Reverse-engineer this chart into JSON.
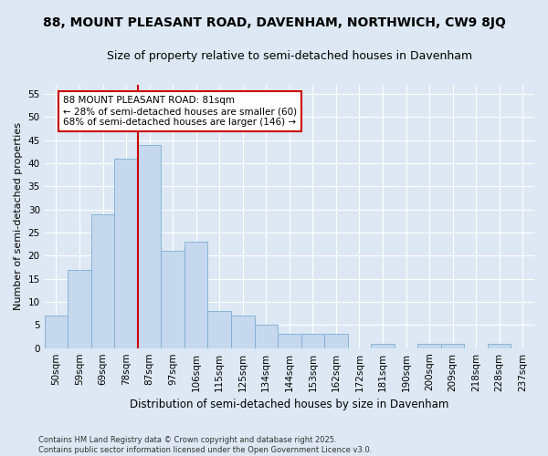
{
  "title": "88, MOUNT PLEASANT ROAD, DAVENHAM, NORTHWICH, CW9 8JQ",
  "subtitle": "Size of property relative to semi-detached houses in Davenham",
  "xlabel": "Distribution of semi-detached houses by size in Davenham",
  "ylabel": "Number of semi-detached properties",
  "categories": [
    "50sqm",
    "59sqm",
    "69sqm",
    "78sqm",
    "87sqm",
    "97sqm",
    "106sqm",
    "115sqm",
    "125sqm",
    "134sqm",
    "144sqm",
    "153sqm",
    "162sqm",
    "172sqm",
    "181sqm",
    "190sqm",
    "200sqm",
    "209sqm",
    "218sqm",
    "228sqm",
    "237sqm"
  ],
  "values": [
    7,
    17,
    29,
    41,
    44,
    21,
    23,
    8,
    7,
    5,
    3,
    3,
    3,
    0,
    1,
    0,
    1,
    1,
    0,
    1,
    0
  ],
  "bar_color": "#c5d8ed",
  "bar_edge_color": "#7aafd4",
  "vline_color": "#cc0000",
  "vline_index": 3.5,
  "ylim": [
    0,
    57
  ],
  "yticks": [
    0,
    5,
    10,
    15,
    20,
    25,
    30,
    35,
    40,
    45,
    50,
    55
  ],
  "annotation_text": "88 MOUNT PLEASANT ROAD: 81sqm\n← 28% of semi-detached houses are smaller (60)\n68% of semi-detached houses are larger (146) →",
  "box_facecolor": "#ffffff",
  "box_edgecolor": "#cc0000",
  "bg_color": "#dde8f4",
  "grid_color": "#ffffff",
  "footer": "Contains HM Land Registry data © Crown copyright and database right 2025.\nContains public sector information licensed under the Open Government Licence v3.0.",
  "title_fontsize": 10,
  "subtitle_fontsize": 9,
  "xlabel_fontsize": 8.5,
  "ylabel_fontsize": 8,
  "tick_fontsize": 7.5,
  "ann_fontsize": 7.5,
  "footer_fontsize": 6
}
